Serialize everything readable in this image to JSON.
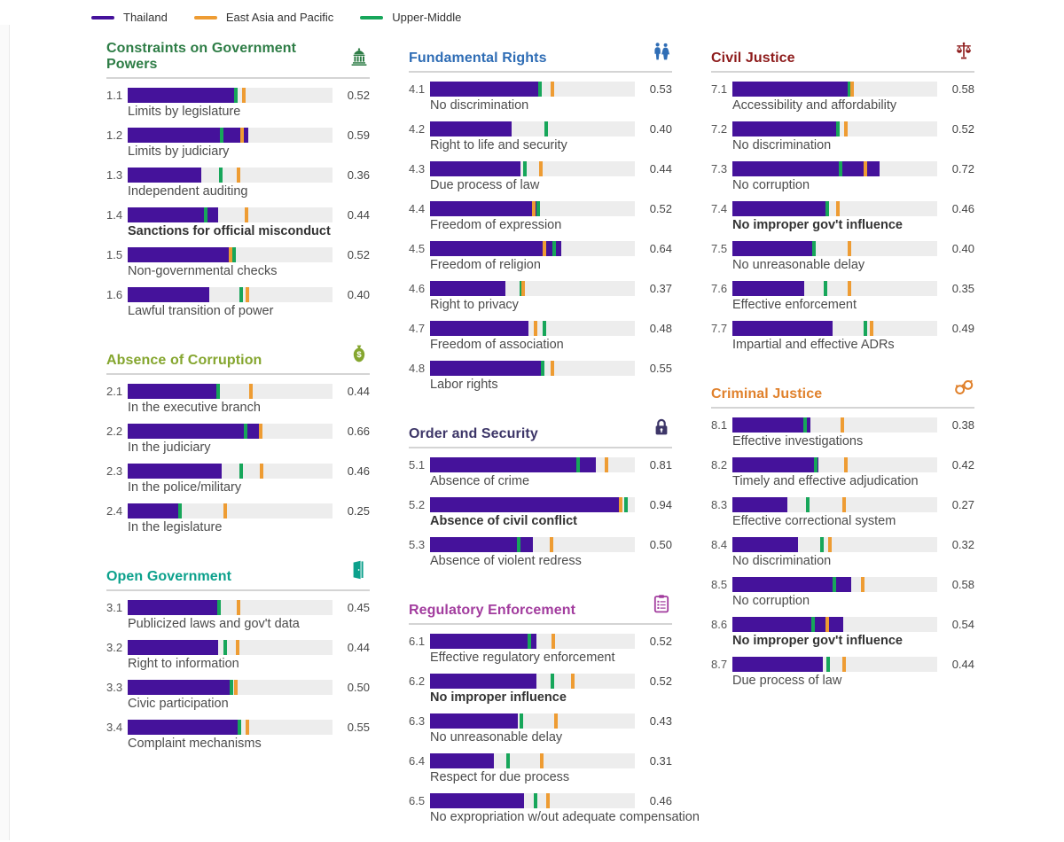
{
  "legend": [
    {
      "label": "Thailand",
      "color": "#45129B"
    },
    {
      "label": "East Asia and Pacific",
      "color": "#EE9C33"
    },
    {
      "label": "Upper-Middle",
      "color": "#17A65A"
    }
  ],
  "colors": {
    "thailand": "#45129B",
    "east_asia_pacific": "#EE9C33",
    "upper_middle": "#17A65A",
    "track": "#ededed"
  },
  "chart_data": {
    "type": "bar",
    "orientation": "horizontal",
    "value_range": [
      0,
      1
    ],
    "series_names": [
      "Thailand",
      "East Asia and Pacific",
      "Upper-Middle"
    ],
    "sections": [
      {
        "id": "1",
        "title": "Constraints on Government Powers",
        "color": "#2E7D46",
        "icon": "capitol-icon",
        "column": 0,
        "rows": [
          {
            "num": "1.1",
            "label": "Limits by legislature",
            "value": 0.52,
            "value_display": "0.52",
            "upper_middle": 0.53,
            "east_asia_pacific": 0.565,
            "bold": false
          },
          {
            "num": "1.2",
            "label": "Limits by judiciary",
            "value": 0.59,
            "value_display": "0.59",
            "upper_middle": 0.46,
            "east_asia_pacific": 0.56,
            "bold": false
          },
          {
            "num": "1.3",
            "label": "Independent auditing",
            "value": 0.36,
            "value_display": "0.36",
            "upper_middle": 0.455,
            "east_asia_pacific": 0.54,
            "bold": false
          },
          {
            "num": "1.4",
            "label": "Sanctions for official misconduct",
            "value": 0.44,
            "value_display": "0.44",
            "upper_middle": 0.38,
            "east_asia_pacific": 0.58,
            "bold": true
          },
          {
            "num": "1.5",
            "label": "Non-governmental checks",
            "value": 0.52,
            "value_display": "0.52",
            "upper_middle": 0.52,
            "east_asia_pacific": 0.503,
            "bold": false
          },
          {
            "num": "1.6",
            "label": "Lawful transition of power",
            "value": 0.4,
            "value_display": "0.40",
            "upper_middle": 0.555,
            "east_asia_pacific": 0.585,
            "bold": false
          }
        ]
      },
      {
        "id": "2",
        "title": "Absence of Corruption",
        "color": "#85A62F",
        "icon": "moneybag-icon",
        "column": 0,
        "rows": [
          {
            "num": "2.1",
            "label": "In the executive branch",
            "value": 0.44,
            "value_display": "0.44",
            "upper_middle": 0.443,
            "east_asia_pacific": 0.6,
            "bold": false
          },
          {
            "num": "2.2",
            "label": "In the judiciary",
            "value": 0.66,
            "value_display": "0.66",
            "upper_middle": 0.575,
            "east_asia_pacific": 0.65,
            "bold": false
          },
          {
            "num": "2.3",
            "label": "In the police/military",
            "value": 0.46,
            "value_display": "0.46",
            "upper_middle": 0.555,
            "east_asia_pacific": 0.655,
            "bold": false
          },
          {
            "num": "2.4",
            "label": "In the legislature",
            "value": 0.25,
            "value_display": "0.25",
            "upper_middle": 0.255,
            "east_asia_pacific": 0.475,
            "bold": false
          }
        ]
      },
      {
        "id": "3",
        "title": "Open Government",
        "color": "#0CA18C",
        "icon": "door-icon",
        "column": 0,
        "rows": [
          {
            "num": "3.1",
            "label": "Publicized laws and gov't data",
            "value": 0.45,
            "value_display": "0.45",
            "upper_middle": 0.445,
            "east_asia_pacific": 0.54,
            "bold": false
          },
          {
            "num": "3.2",
            "label": "Right to information",
            "value": 0.44,
            "value_display": "0.44",
            "upper_middle": 0.475,
            "east_asia_pacific": 0.535,
            "bold": false
          },
          {
            "num": "3.3",
            "label": "Civic participation",
            "value": 0.5,
            "value_display": "0.50",
            "upper_middle": 0.507,
            "east_asia_pacific": 0.527,
            "bold": false
          },
          {
            "num": "3.4",
            "label": "Complaint mechanisms",
            "value": 0.55,
            "value_display": "0.55",
            "upper_middle": 0.547,
            "east_asia_pacific": 0.583,
            "bold": false
          }
        ]
      },
      {
        "id": "4",
        "title": "Fundamental Rights",
        "color": "#2F6DB5",
        "icon": "people-icon",
        "column": 1,
        "rows": [
          {
            "num": "4.1",
            "label": "No discrimination",
            "value": 0.53,
            "value_display": "0.53",
            "upper_middle": 0.537,
            "east_asia_pacific": 0.596,
            "bold": false
          },
          {
            "num": "4.2",
            "label": "Right to life and security",
            "value": 0.4,
            "value_display": "0.40",
            "upper_middle": 0.565,
            "east_asia_pacific": null,
            "bold": false
          },
          {
            "num": "4.3",
            "label": "Due process of law",
            "value": 0.44,
            "value_display": "0.44",
            "upper_middle": 0.463,
            "east_asia_pacific": 0.542,
            "bold": false
          },
          {
            "num": "4.4",
            "label": "Freedom of expression",
            "value": 0.52,
            "value_display": "0.52",
            "upper_middle": 0.527,
            "east_asia_pacific": 0.508,
            "bold": false
          },
          {
            "num": "4.5",
            "label": "Freedom of religion",
            "value": 0.64,
            "value_display": "0.64",
            "upper_middle": 0.605,
            "east_asia_pacific": 0.558,
            "bold": false
          },
          {
            "num": "4.6",
            "label": "Right to privacy",
            "value": 0.37,
            "value_display": "0.37",
            "upper_middle": 0.444,
            "east_asia_pacific": 0.456,
            "bold": false
          },
          {
            "num": "4.7",
            "label": "Freedom of association",
            "value": 0.48,
            "value_display": "0.48",
            "upper_middle": 0.558,
            "east_asia_pacific": 0.517,
            "bold": false
          },
          {
            "num": "4.8",
            "label": "Labor rights",
            "value": 0.55,
            "value_display": "0.55",
            "upper_middle": 0.548,
            "east_asia_pacific": 0.596,
            "bold": false
          }
        ]
      },
      {
        "id": "5",
        "title": "Order and Security",
        "color": "#3D3668",
        "icon": "lock-icon",
        "column": 1,
        "rows": [
          {
            "num": "5.1",
            "label": "Absence of crime",
            "value": 0.81,
            "value_display": "0.81",
            "upper_middle": 0.725,
            "east_asia_pacific": 0.863,
            "bold": false
          },
          {
            "num": "5.2",
            "label": "Absence of civil conflict",
            "value": 0.94,
            "value_display": "0.94",
            "upper_middle": 0.955,
            "east_asia_pacific": 0.932,
            "bold": true
          },
          {
            "num": "5.3",
            "label": "Absence of violent redress",
            "value": 0.5,
            "value_display": "0.50",
            "upper_middle": 0.435,
            "east_asia_pacific": 0.595,
            "bold": false
          }
        ]
      },
      {
        "id": "6",
        "title": "Regulatory Enforcement",
        "color": "#A23C9E",
        "icon": "clipboard-icon",
        "column": 1,
        "rows": [
          {
            "num": "6.1",
            "label": "Effective regulatory enforcement",
            "value": 0.52,
            "value_display": "0.52",
            "upper_middle": 0.483,
            "east_asia_pacific": 0.6,
            "bold": false
          },
          {
            "num": "6.2",
            "label": "No improper influence",
            "value": 0.52,
            "value_display": "0.52",
            "upper_middle": 0.596,
            "east_asia_pacific": 0.695,
            "bold": true
          },
          {
            "num": "6.3",
            "label": "No unreasonable delay",
            "value": 0.43,
            "value_display": "0.43",
            "upper_middle": 0.445,
            "east_asia_pacific": 0.615,
            "bold": false
          },
          {
            "num": "6.4",
            "label": "Respect for due process",
            "value": 0.31,
            "value_display": "0.31",
            "upper_middle": 0.382,
            "east_asia_pacific": 0.545,
            "bold": false
          },
          {
            "num": "6.5",
            "label": "No expropriation w/out adequate compensation",
            "value": 0.46,
            "value_display": "0.46",
            "upper_middle": 0.517,
            "east_asia_pacific": 0.576,
            "bold": false
          }
        ]
      },
      {
        "id": "7",
        "title": "Civil Justice",
        "color": "#8E1C1C",
        "icon": "scales-icon",
        "column": 2,
        "rows": [
          {
            "num": "7.1",
            "label": "Accessibility and affordability",
            "value": 0.58,
            "value_display": "0.58",
            "upper_middle": 0.572,
            "east_asia_pacific": 0.585,
            "bold": false
          },
          {
            "num": "7.2",
            "label": "No discrimination",
            "value": 0.52,
            "value_display": "0.52",
            "upper_middle": 0.515,
            "east_asia_pacific": 0.553,
            "bold": false
          },
          {
            "num": "7.3",
            "label": "No corruption",
            "value": 0.72,
            "value_display": "0.72",
            "upper_middle": 0.527,
            "east_asia_pacific": 0.648,
            "bold": false
          },
          {
            "num": "7.4",
            "label": "No improper gov't influence",
            "value": 0.46,
            "value_display": "0.46",
            "upper_middle": 0.463,
            "east_asia_pacific": 0.513,
            "bold": true
          },
          {
            "num": "7.5",
            "label": "No unreasonable delay",
            "value": 0.4,
            "value_display": "0.40",
            "upper_middle": 0.397,
            "east_asia_pacific": 0.57,
            "bold": false
          },
          {
            "num": "7.6",
            "label": "Effective enforcement",
            "value": 0.35,
            "value_display": "0.35",
            "upper_middle": 0.455,
            "east_asia_pacific": 0.57,
            "bold": false
          },
          {
            "num": "7.7",
            "label": "Impartial and effective ADRs",
            "value": 0.49,
            "value_display": "0.49",
            "upper_middle": 0.648,
            "east_asia_pacific": 0.678,
            "bold": false
          }
        ]
      },
      {
        "id": "8",
        "title": "Criminal Justice",
        "color": "#E0812C",
        "icon": "handcuffs-icon",
        "column": 2,
        "rows": [
          {
            "num": "8.1",
            "label": "Effective investigations",
            "value": 0.38,
            "value_display": "0.38",
            "upper_middle": 0.356,
            "east_asia_pacific": 0.538,
            "bold": false
          },
          {
            "num": "8.2",
            "label": "Timely and effective adjudication",
            "value": 0.42,
            "value_display": "0.42",
            "upper_middle": 0.405,
            "east_asia_pacific": 0.553,
            "bold": false
          },
          {
            "num": "8.3",
            "label": "Effective correctional system",
            "value": 0.27,
            "value_display": "0.27",
            "upper_middle": 0.366,
            "east_asia_pacific": 0.545,
            "bold": false
          },
          {
            "num": "8.4",
            "label": "No discrimination",
            "value": 0.32,
            "value_display": "0.32",
            "upper_middle": 0.437,
            "east_asia_pacific": 0.475,
            "bold": false
          },
          {
            "num": "8.5",
            "label": "No corruption",
            "value": 0.58,
            "value_display": "0.58",
            "upper_middle": 0.497,
            "east_asia_pacific": 0.638,
            "bold": false
          },
          {
            "num": "8.6",
            "label": "No improper gov't influence",
            "value": 0.54,
            "value_display": "0.54",
            "upper_middle": 0.395,
            "east_asia_pacific": 0.462,
            "bold": true
          },
          {
            "num": "8.7",
            "label": "Due process of law",
            "value": 0.44,
            "value_display": "0.44",
            "upper_middle": 0.468,
            "east_asia_pacific": 0.547,
            "bold": false
          }
        ]
      }
    ]
  },
  "layout_columns": [
    [
      "1",
      "2",
      "3"
    ],
    [
      "4",
      "5",
      "6"
    ],
    [
      "7",
      "8"
    ]
  ]
}
